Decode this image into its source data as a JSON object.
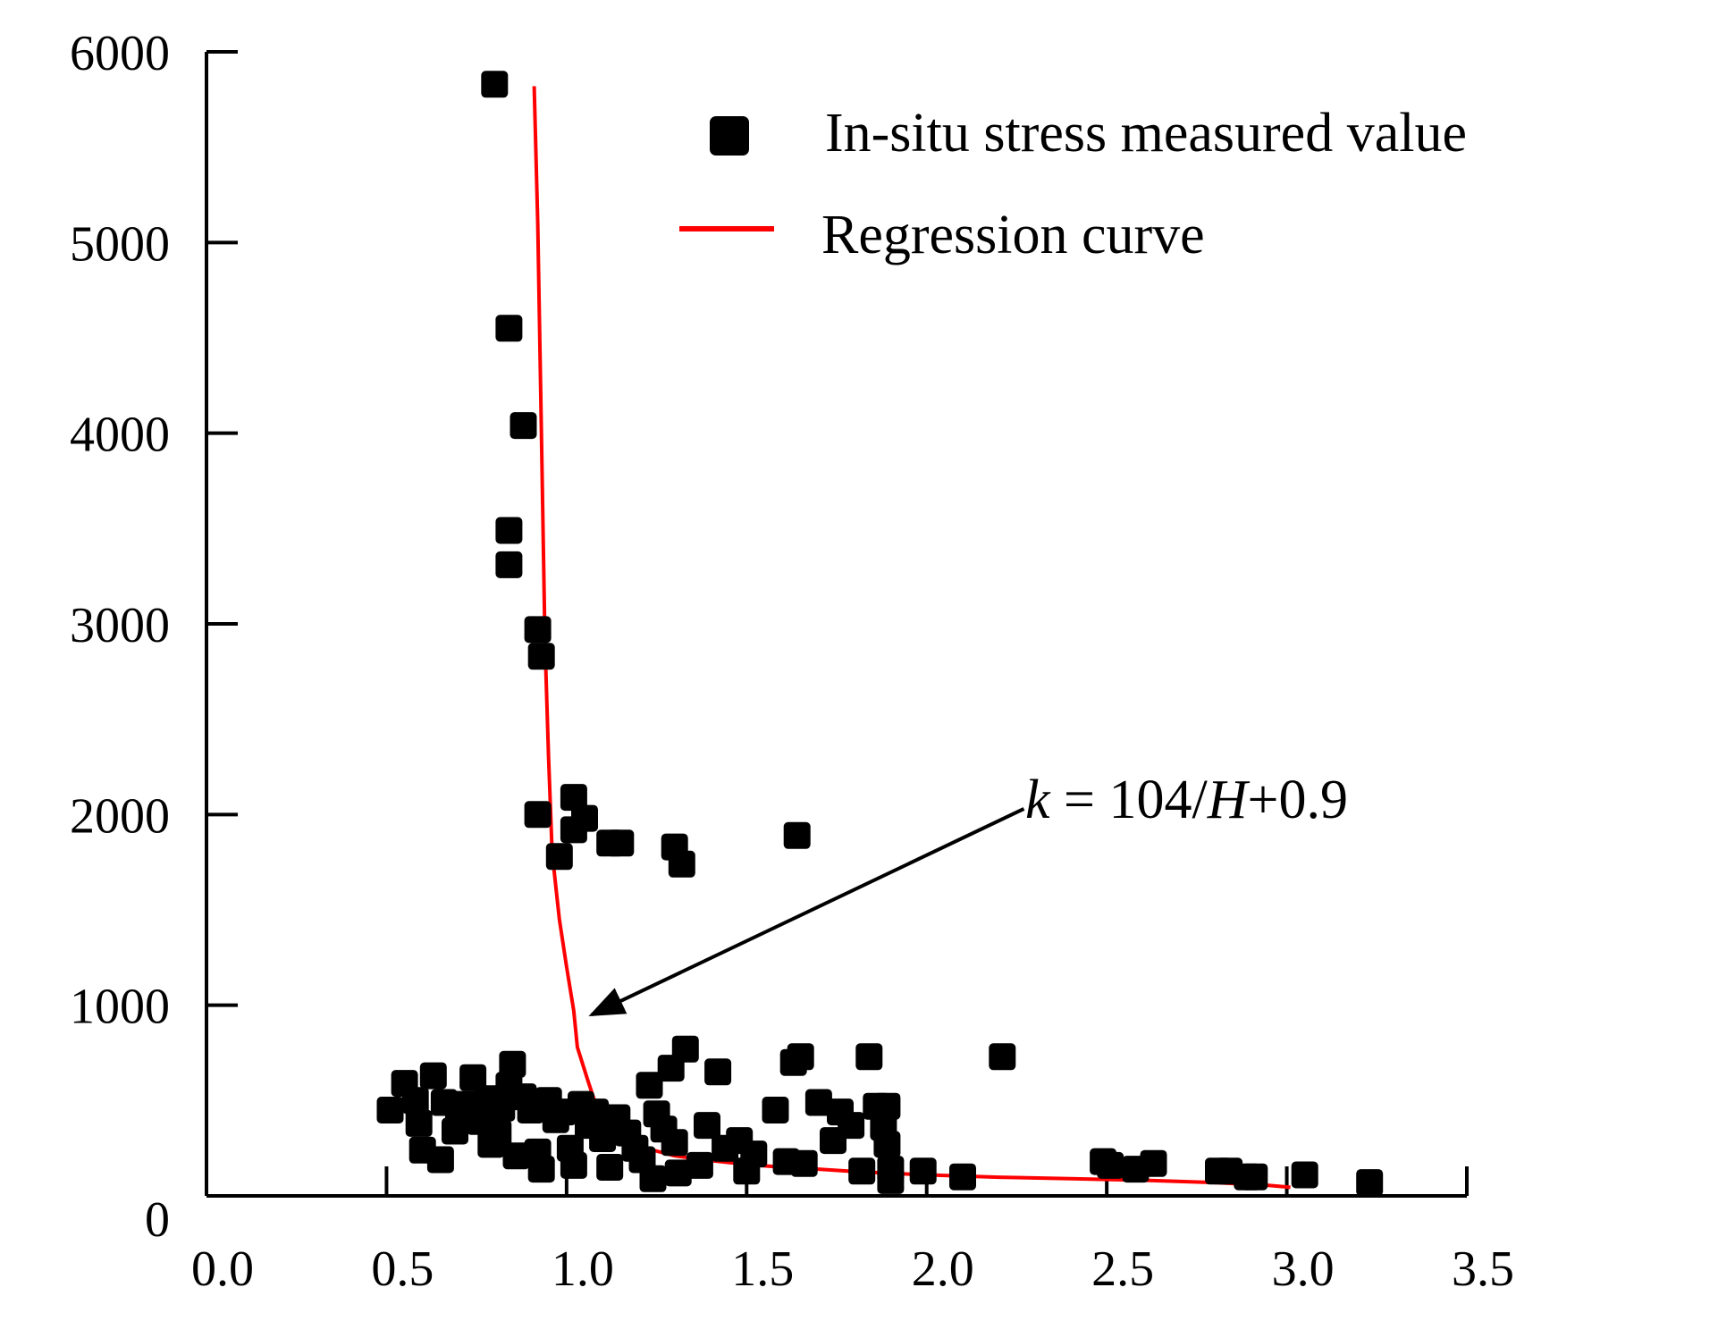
{
  "chart_data": {
    "type": "scatter",
    "title": "",
    "xlabel": "",
    "ylabel": "",
    "xlim": [
      0,
      3.5
    ],
    "ylim": [
      0,
      6000
    ],
    "x_ticks": [
      "0.0",
      "0.5",
      "1.0",
      "1.5",
      "2.0",
      "2.5",
      "3.0",
      "3.5"
    ],
    "x_tick_values": [
      0,
      0.5,
      1.0,
      1.5,
      2.0,
      2.5,
      3.0,
      3.5
    ],
    "y_ticks": [
      "0",
      "1000",
      "2000",
      "3000",
      "4000",
      "5000",
      "6000"
    ],
    "y_tick_values": [
      0,
      1000,
      2000,
      3000,
      4000,
      5000,
      6000
    ],
    "grid": false,
    "legend_position": "top-right",
    "colors": {
      "points": "#000000",
      "curve": "#ff0000",
      "axis": "#000000"
    },
    "series": [
      {
        "name": "In-situ stress measured value",
        "kind": "scatter",
        "marker": "square",
        "points": [
          [
            0.8,
            5830
          ],
          [
            0.84,
            4550
          ],
          [
            0.88,
            4040
          ],
          [
            0.84,
            3490
          ],
          [
            0.84,
            3310
          ],
          [
            0.92,
            2970
          ],
          [
            0.93,
            2830
          ],
          [
            0.92,
            2000
          ],
          [
            1.02,
            2090
          ],
          [
            1.05,
            1980
          ],
          [
            1.02,
            1920
          ],
          [
            0.98,
            1780
          ],
          [
            1.12,
            1850
          ],
          [
            1.15,
            1850
          ],
          [
            1.3,
            1830
          ],
          [
            1.32,
            1740
          ],
          [
            1.64,
            1890
          ],
          [
            0.51,
            450
          ],
          [
            0.55,
            590
          ],
          [
            0.58,
            500
          ],
          [
            0.59,
            380
          ],
          [
            0.6,
            240
          ],
          [
            0.63,
            630
          ],
          [
            0.65,
            190
          ],
          [
            0.66,
            490
          ],
          [
            0.69,
            340
          ],
          [
            0.7,
            420
          ],
          [
            0.72,
            480
          ],
          [
            0.74,
            620
          ],
          [
            0.76,
            390
          ],
          [
            0.78,
            510
          ],
          [
            0.79,
            270
          ],
          [
            0.81,
            330
          ],
          [
            0.82,
            460
          ],
          [
            0.84,
            580
          ],
          [
            0.85,
            690
          ],
          [
            0.86,
            210
          ],
          [
            0.88,
            520
          ],
          [
            0.9,
            450
          ],
          [
            0.92,
            230
          ],
          [
            0.93,
            140
          ],
          [
            0.95,
            500
          ],
          [
            0.97,
            400
          ],
          [
            0.99,
            440
          ],
          [
            1.01,
            250
          ],
          [
            1.02,
            160
          ],
          [
            1.04,
            480
          ],
          [
            1.06,
            370
          ],
          [
            1.08,
            440
          ],
          [
            1.1,
            300
          ],
          [
            1.12,
            150
          ],
          [
            1.14,
            410
          ],
          [
            1.17,
            330
          ],
          [
            1.19,
            250
          ],
          [
            1.21,
            190
          ],
          [
            1.23,
            580
          ],
          [
            1.24,
            90
          ],
          [
            1.25,
            430
          ],
          [
            1.27,
            350
          ],
          [
            1.29,
            670
          ],
          [
            1.3,
            280
          ],
          [
            1.31,
            120
          ],
          [
            1.33,
            770
          ],
          [
            1.37,
            160
          ],
          [
            1.39,
            370
          ],
          [
            1.42,
            650
          ],
          [
            1.44,
            250
          ],
          [
            1.48,
            290
          ],
          [
            1.5,
            130
          ],
          [
            1.52,
            220
          ],
          [
            1.58,
            450
          ],
          [
            1.61,
            180
          ],
          [
            1.63,
            700
          ],
          [
            1.65,
            730
          ],
          [
            1.66,
            170
          ],
          [
            1.7,
            490
          ],
          [
            1.74,
            290
          ],
          [
            1.76,
            440
          ],
          [
            1.79,
            370
          ],
          [
            1.82,
            130
          ],
          [
            1.84,
            730
          ],
          [
            1.86,
            470
          ],
          [
            1.88,
            360
          ],
          [
            1.89,
            470
          ],
          [
            1.89,
            270
          ],
          [
            1.9,
            80
          ],
          [
            1.9,
            140
          ],
          [
            1.99,
            130
          ],
          [
            2.1,
            100
          ],
          [
            2.21,
            730
          ],
          [
            2.49,
            180
          ],
          [
            2.51,
            160
          ],
          [
            2.58,
            140
          ],
          [
            2.63,
            170
          ],
          [
            2.81,
            130
          ],
          [
            2.84,
            130
          ],
          [
            2.89,
            100
          ],
          [
            2.91,
            100
          ],
          [
            3.05,
            110
          ],
          [
            3.23,
            70
          ]
        ]
      },
      {
        "name": "Regression curve",
        "kind": "line",
        "points": [
          [
            0.91,
            5820
          ],
          [
            0.92,
            5100
          ],
          [
            0.93,
            4000
          ],
          [
            0.94,
            2900
          ],
          [
            0.95,
            2300
          ],
          [
            0.96,
            1800
          ],
          [
            0.98,
            1450
          ],
          [
            1.0,
            1200
          ],
          [
            1.02,
            970
          ],
          [
            1.03,
            780
          ],
          [
            1.06,
            600
          ],
          [
            1.09,
            430
          ],
          [
            1.13,
            330
          ],
          [
            1.2,
            260
          ],
          [
            1.3,
            210
          ],
          [
            1.4,
            185
          ],
          [
            1.5,
            165
          ],
          [
            1.6,
            150
          ],
          [
            1.7,
            140
          ],
          [
            1.8,
            128
          ],
          [
            1.9,
            118
          ],
          [
            2.0,
            110
          ],
          [
            2.2,
            98
          ],
          [
            2.4,
            90
          ],
          [
            2.6,
            82
          ],
          [
            2.8,
            70
          ],
          [
            2.95,
            55
          ],
          [
            3.01,
            45
          ]
        ]
      }
    ],
    "annotation": {
      "prefix": "k",
      "eq": " = 104/",
      "var": "H",
      "suffix": "+0.9",
      "arrow_from": [
        2.27,
        2030
      ],
      "arrow_to": [
        1.07,
        950
      ]
    }
  }
}
